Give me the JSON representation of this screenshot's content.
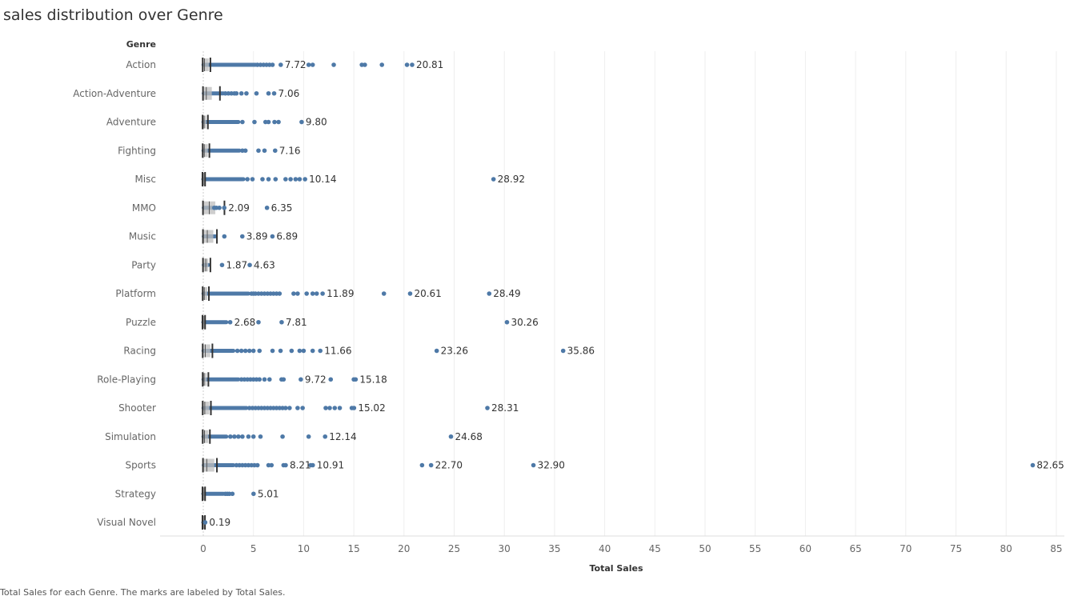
{
  "title": "sales distribution over Genre",
  "footer": "Total Sales for each Genre.  The marks are labeled by Total Sales.",
  "colors": {
    "dot": "#4e79a7",
    "box": "#bdbdbd",
    "whisker": "#333333",
    "grid": "#eeeeee"
  },
  "chart_data": {
    "type": "scatter",
    "title": "sales distribution over Genre",
    "row_header": "Genre",
    "xlabel": "Total Sales",
    "xlim": [
      -4,
      85.5
    ],
    "xticks": [
      0,
      5,
      10,
      15,
      20,
      25,
      30,
      35,
      40,
      45,
      50,
      55,
      60,
      65,
      70,
      75,
      80,
      85
    ],
    "grid": true,
    "categories": [
      "Action",
      "Action-Adventure",
      "Adventure",
      "Fighting",
      "Misc",
      "MMO",
      "Music",
      "Party",
      "Platform",
      "Puzzle",
      "Racing",
      "Role-Playing",
      "Shooter",
      "Simulation",
      "Sports",
      "Strategy",
      "Visual Novel"
    ],
    "series": [
      {
        "genre": "Action",
        "box": {
          "q1": 0.02,
          "median": 0.12,
          "q3": 0.55,
          "whisker_high": 0.55
        },
        "dense_range": [
          0.02,
          5.2
        ],
        "points": [
          5.4,
          5.7,
          6.0,
          6.3,
          6.6,
          6.9,
          7.72,
          10.5,
          10.9,
          13.0,
          15.8,
          16.1,
          17.8,
          20.3,
          20.81
        ],
        "labels": [
          "7.72",
          "20.81"
        ]
      },
      {
        "genre": "Action-Adventure",
        "box": {
          "q1": 0.05,
          "median": 0.3,
          "q3": 0.85,
          "whisker_high": 1.5
        },
        "dense_range": [
          0.05,
          2.0
        ],
        "points": [
          2.2,
          2.5,
          2.8,
          3.1,
          3.3,
          3.8,
          4.3,
          5.3,
          6.5,
          7.06
        ],
        "labels": [
          "7.06"
        ]
      },
      {
        "genre": "Adventure",
        "box": {
          "q1": 0.01,
          "median": 0.08,
          "q3": 0.3,
          "whisker_high": 0.3
        },
        "dense_range": [
          0.01,
          3.5
        ],
        "points": [
          3.9,
          5.1,
          6.2,
          6.5,
          7.1,
          7.5,
          9.8
        ],
        "labels": [
          "9.80"
        ]
      },
      {
        "genre": "Fighting",
        "box": {
          "q1": 0.02,
          "median": 0.1,
          "q3": 0.45,
          "whisker_high": 0.45
        },
        "dense_range": [
          0.02,
          3.6
        ],
        "points": [
          3.9,
          4.2,
          5.5,
          6.1,
          7.16
        ],
        "labels": [
          "7.16"
        ]
      },
      {
        "genre": "Misc",
        "box": {
          "q1": 0.0,
          "median": 0.0,
          "q3": 0.02,
          "whisker_high": 0.02
        },
        "dense_range": [
          0.0,
          4.0
        ],
        "points": [
          4.4,
          4.9,
          5.9,
          6.5,
          7.2,
          8.2,
          8.7,
          9.2,
          9.6,
          10.14,
          28.92
        ],
        "labels": [
          "10.14",
          "28.92"
        ]
      },
      {
        "genre": "MMO",
        "box": {
          "q1": 0.05,
          "median": 0.6,
          "q3": 1.2,
          "whisker_high": 1.95
        },
        "dense_range": [
          0.05,
          1.0
        ],
        "points": [
          1.1,
          1.3,
          1.6,
          2.09,
          6.35
        ],
        "labels": [
          "2.09",
          "6.35"
        ]
      },
      {
        "genre": "Music",
        "box": {
          "q1": 0.05,
          "median": 0.4,
          "q3": 1.0,
          "whisker_high": 1.2
        },
        "dense_range": [
          0.05,
          1.2
        ],
        "points": [
          2.1,
          3.89,
          6.89
        ],
        "labels": [
          "3.89",
          "6.89"
        ]
      },
      {
        "genre": "Party",
        "box": {
          "q1": 0.05,
          "median": 0.25,
          "q3": 0.5,
          "whisker_high": 0.55
        },
        "dense_range": [
          0.05,
          0.5
        ],
        "points": [
          1.87,
          4.63
        ],
        "labels": [
          "1.87",
          "4.63"
        ]
      },
      {
        "genre": "Platform",
        "box": {
          "q1": 0.02,
          "median": 0.1,
          "q3": 0.4,
          "whisker_high": 0.4
        },
        "dense_range": [
          0.02,
          4.5
        ],
        "points": [
          4.8,
          5.0,
          5.2,
          5.5,
          5.8,
          6.1,
          6.4,
          6.7,
          7.0,
          7.3,
          7.6,
          9.0,
          9.4,
          10.3,
          10.9,
          11.3,
          11.89,
          18.0,
          20.61,
          28.49
        ],
        "labels": [
          "11.89",
          "20.61",
          "28.49"
        ]
      },
      {
        "genre": "Puzzle",
        "box": {
          "q1": 0.0,
          "median": 0.0,
          "q3": 0.02,
          "whisker_high": 0.02
        },
        "dense_range": [
          0.0,
          2.3
        ],
        "points": [
          2.68,
          5.5,
          7.81,
          30.26
        ],
        "labels": [
          "2.68",
          "7.81",
          "30.26"
        ]
      },
      {
        "genre": "Racing",
        "box": {
          "q1": 0.02,
          "median": 0.2,
          "q3": 0.7,
          "whisker_high": 0.75
        },
        "dense_range": [
          0.02,
          3.0
        ],
        "points": [
          3.4,
          3.8,
          4.2,
          4.6,
          5.0,
          5.6,
          6.9,
          7.7,
          8.8,
          9.6,
          10.0,
          10.9,
          11.66,
          23.26,
          35.86
        ],
        "labels": [
          "11.66",
          "23.26",
          "35.86"
        ]
      },
      {
        "genre": "Role-Playing",
        "box": {
          "q1": 0.02,
          "median": 0.08,
          "q3": 0.35,
          "whisker_high": 0.35
        },
        "dense_range": [
          0.02,
          3.5
        ],
        "points": [
          3.8,
          4.1,
          4.4,
          4.7,
          5.0,
          5.3,
          5.6,
          6.1,
          6.6,
          7.8,
          8.0,
          9.72,
          12.7,
          15.0,
          15.18
        ],
        "labels": [
          "9.72",
          "15.18"
        ]
      },
      {
        "genre": "Shooter",
        "box": {
          "q1": 0.02,
          "median": 0.15,
          "q3": 0.6,
          "whisker_high": 0.6
        },
        "dense_range": [
          0.02,
          4.3
        ],
        "points": [
          4.6,
          4.9,
          5.2,
          5.5,
          5.8,
          6.1,
          6.4,
          6.7,
          7.0,
          7.3,
          7.6,
          7.9,
          8.2,
          8.6,
          9.4,
          9.9,
          12.2,
          12.6,
          13.1,
          13.6,
          14.8,
          15.02,
          28.31
        ],
        "labels": [
          "15.02",
          "28.31"
        ]
      },
      {
        "genre": "Simulation",
        "box": {
          "q1": 0.02,
          "median": 0.12,
          "q3": 0.5,
          "whisker_high": 0.5
        },
        "dense_range": [
          0.02,
          2.3
        ],
        "points": [
          2.7,
          3.1,
          3.5,
          3.9,
          4.5,
          5.0,
          5.7,
          7.9,
          10.5,
          12.14,
          24.68
        ],
        "labels": [
          "12.14",
          "24.68"
        ]
      },
      {
        "genre": "Sports",
        "box": {
          "q1": 0.05,
          "median": 0.35,
          "q3": 1.1,
          "whisker_high": 1.2
        },
        "dense_range": [
          0.05,
          3.0
        ],
        "points": [
          3.3,
          3.6,
          3.9,
          4.2,
          4.5,
          4.8,
          5.1,
          5.4,
          6.5,
          6.8,
          8.0,
          8.21,
          10.7,
          10.91,
          21.8,
          22.7,
          32.9,
          82.65
        ],
        "labels": [
          "8.21",
          "10.91",
          "22.70",
          "32.90",
          "82.65"
        ]
      },
      {
        "genre": "Strategy",
        "box": {
          "q1": 0.0,
          "median": 0.0,
          "q3": 0.02,
          "whisker_high": 0.02
        },
        "dense_range": [
          0.0,
          2.0
        ],
        "points": [
          2.2,
          2.4,
          2.6,
          2.9,
          5.01
        ],
        "labels": [
          "5.01"
        ]
      },
      {
        "genre": "Visual Novel",
        "box": {
          "q1": 0.0,
          "median": 0.0,
          "q3": 0.01,
          "whisker_high": 0.01
        },
        "dense_range": [
          0.0,
          0.1
        ],
        "points": [
          0.19
        ],
        "labels": [
          "0.19"
        ]
      }
    ]
  }
}
